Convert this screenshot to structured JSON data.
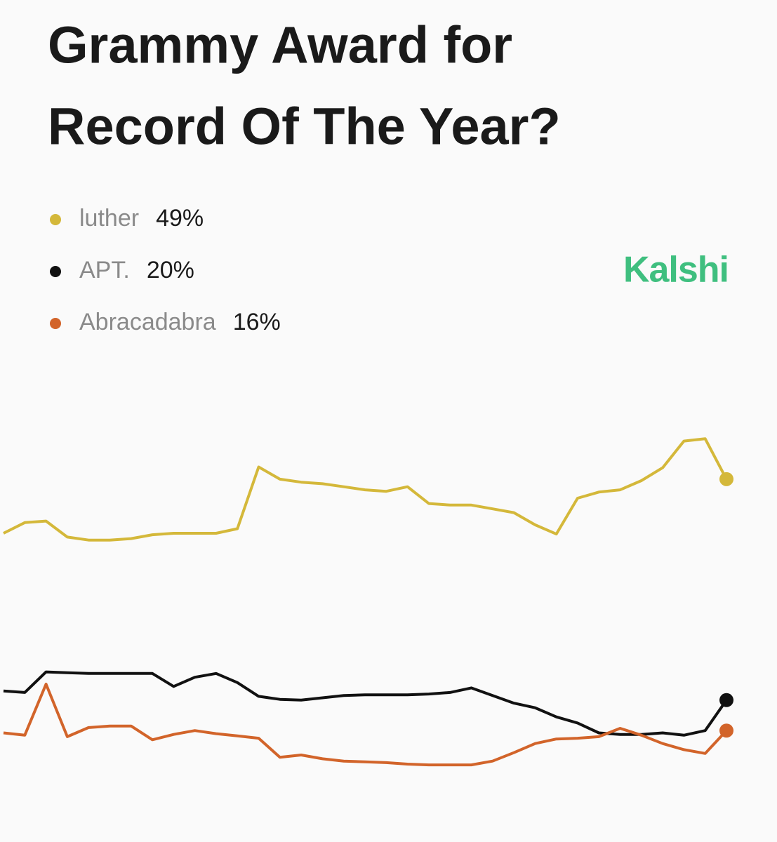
{
  "chart_data": {
    "type": "line",
    "title_lines": [
      "Grammy Award for",
      "Record Of The Year?"
    ],
    "brand": "Kalshi",
    "series": [
      {
        "name": "luther",
        "color": "#d4b83a",
        "value_label": "49%",
        "values": [
          41.9,
          43.3,
          43.5,
          41.4,
          41,
          41,
          41.2,
          41.7,
          41.9,
          41.9,
          41.9,
          42.5,
          50.6,
          49,
          48.6,
          48.4,
          48,
          47.6,
          47.4,
          48,
          45.8,
          45.6,
          45.6,
          45.1,
          44.6,
          43,
          41.8,
          46.5,
          47.3,
          47.6,
          48.8,
          50.5,
          54,
          54.3,
          49
        ]
      },
      {
        "name": "APT.",
        "color": "#111111",
        "value_label": "20%",
        "values": [
          21.2,
          21,
          23.7,
          23.6,
          23.5,
          23.5,
          23.5,
          23.5,
          21.8,
          23,
          23.5,
          22.3,
          20.5,
          20.1,
          20,
          20.3,
          20.6,
          20.7,
          20.7,
          20.7,
          20.8,
          21,
          21.6,
          20.6,
          19.6,
          19,
          17.8,
          17,
          15.7,
          15.5,
          15.5,
          15.7,
          15.4,
          16,
          20
        ]
      },
      {
        "name": "Abracadabra",
        "color": "#d2642a",
        "value_label": "16%",
        "values": [
          15.7,
          15.4,
          22.1,
          15.2,
          16.4,
          16.6,
          16.6,
          14.8,
          15.5,
          16,
          15.6,
          15.3,
          15,
          12.5,
          12.8,
          12.3,
          12,
          11.9,
          11.8,
          11.6,
          11.5,
          11.5,
          11.5,
          12,
          13.1,
          14.3,
          14.9,
          15,
          15.2,
          16.3,
          15.4,
          14.3,
          13.5,
          13,
          16
        ]
      }
    ]
  }
}
